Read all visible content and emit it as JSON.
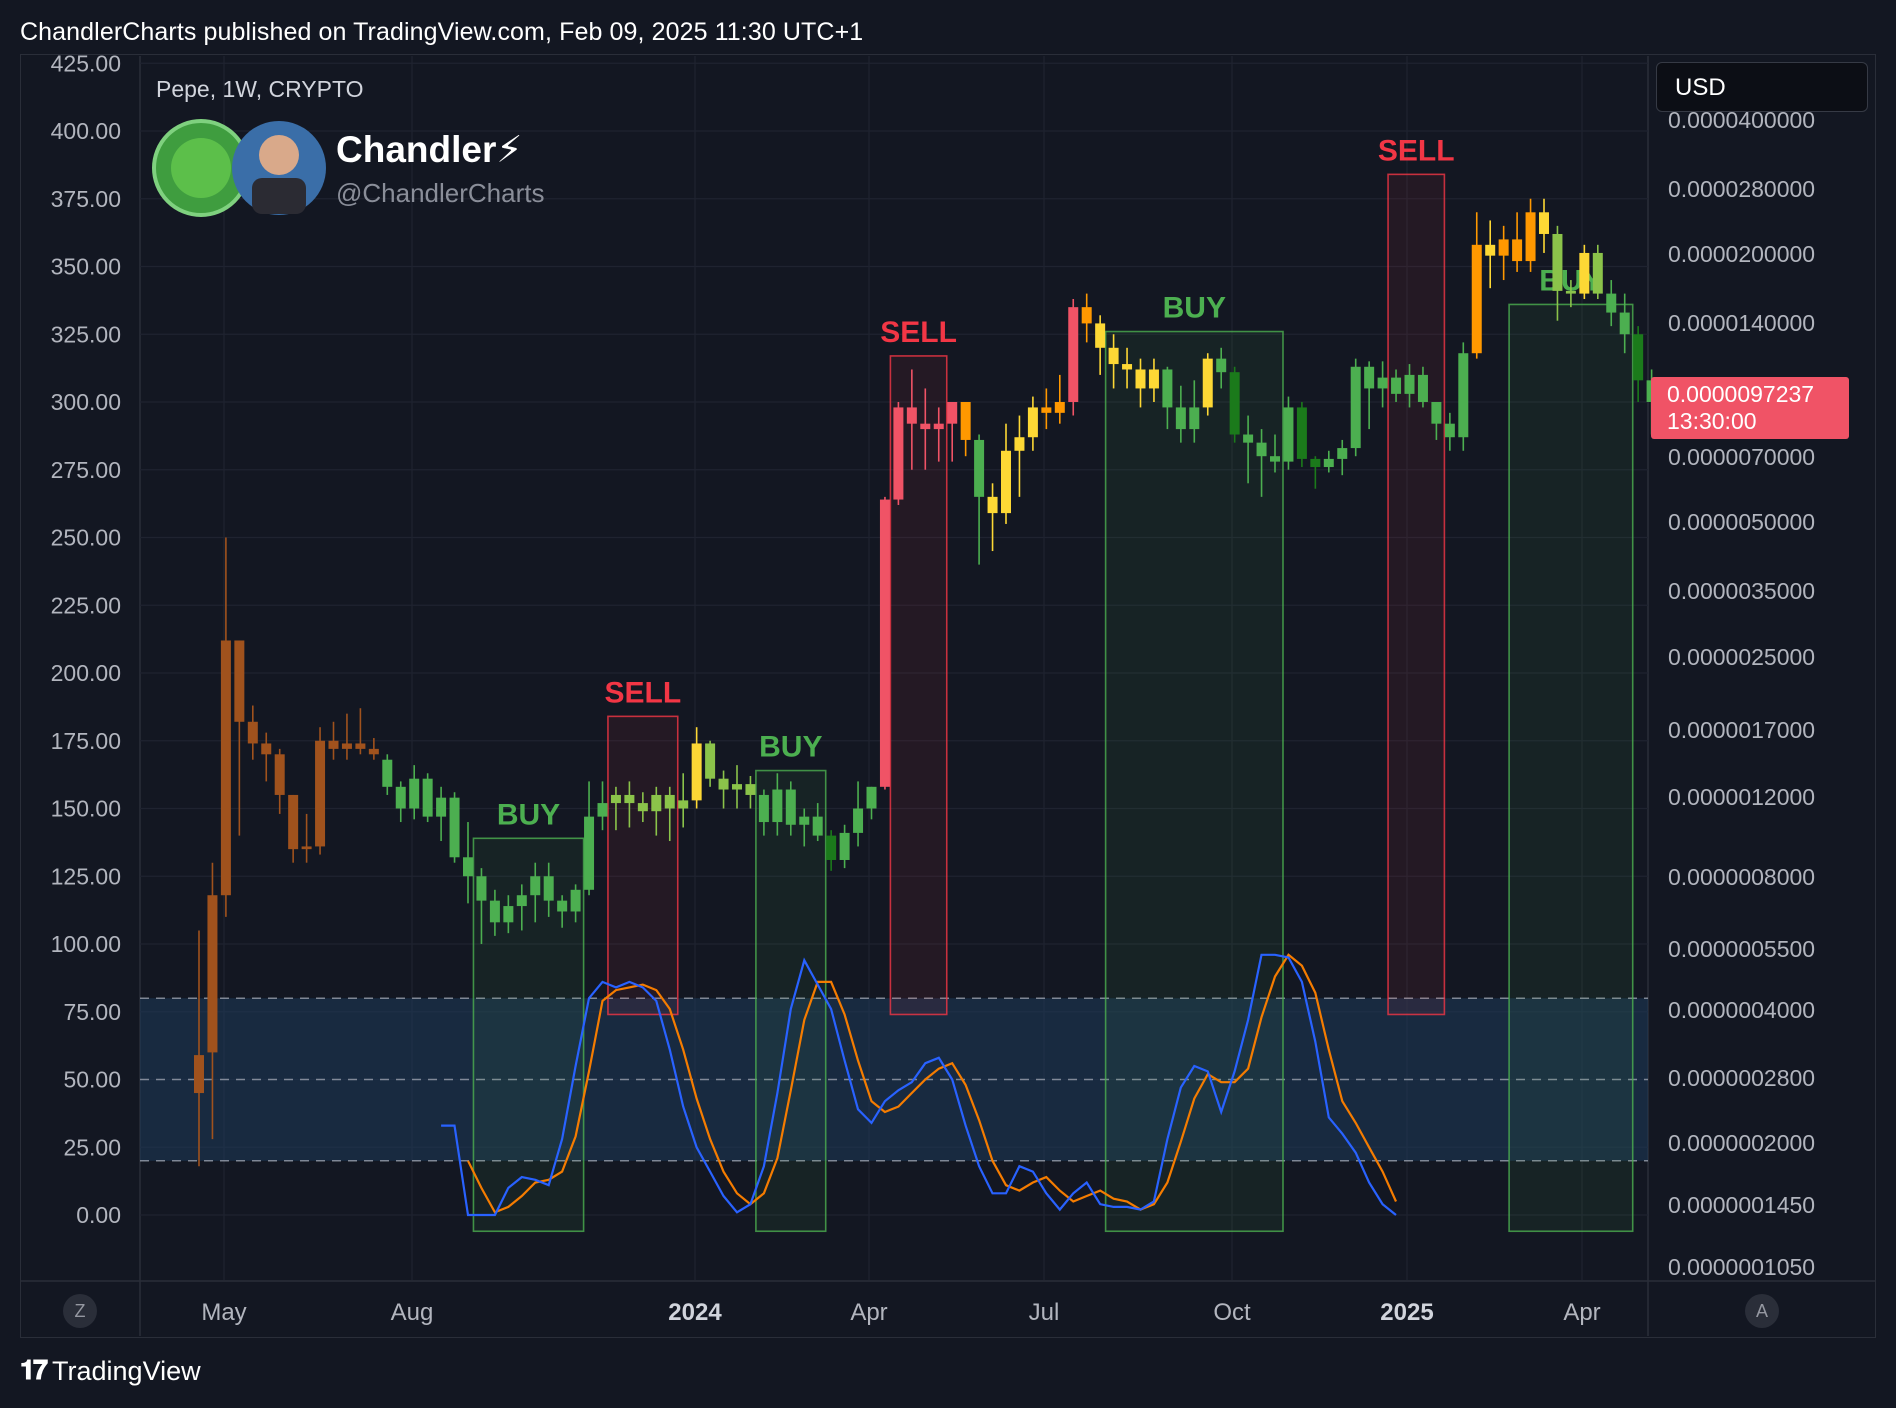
{
  "header": {
    "published_line": "ChandlerCharts published on TradingView.com, Feb 09, 2025 11:30 UTC+1"
  },
  "legend": {
    "symbol_line": "Pepe, 1W, CRYPTO",
    "author_name": "Chandler⚡",
    "handle": "@ChandlerCharts"
  },
  "currency_button": {
    "label": "USD"
  },
  "last_price": {
    "value": "0.0000097237",
    "countdown": "13:30:00",
    "color": "#f05366"
  },
  "footer": {
    "brand": "TradingView"
  },
  "corner_buttons": {
    "left": "Z",
    "right": "A"
  },
  "chart_data": {
    "type": "candlestick",
    "left_axis_ticks": [
      "425.00",
      "400.00",
      "375.00",
      "350.00",
      "325.00",
      "300.00",
      "275.00",
      "250.00",
      "225.00",
      "200.00",
      "175.00",
      "150.00",
      "125.00",
      "100.00",
      "75.00",
      "50.00",
      "25.00",
      "0.00"
    ],
    "right_axis_ticks": [
      "0.0000400000",
      "0.0000280000",
      "0.0000200000",
      "0.0000140000",
      "0.0000070000",
      "0.0000050000",
      "0.0000035000",
      "0.0000025000",
      "0.0000017000",
      "0.0000012000",
      "0.0000008000",
      "0.0000005500",
      "0.0000004000",
      "0.0000002800",
      "0.0000002000",
      "0.0000001450",
      "0.0000001050"
    ],
    "x_axis_ticks": [
      {
        "label": "May",
        "bold": false
      },
      {
        "label": "Aug",
        "bold": false
      },
      {
        "label": "2024",
        "bold": true
      },
      {
        "label": "Apr",
        "bold": false
      },
      {
        "label": "Jul",
        "bold": false
      },
      {
        "label": "Oct",
        "bold": false
      },
      {
        "label": "2025",
        "bold": true
      },
      {
        "label": "Apr",
        "bold": false
      }
    ],
    "candles_left_scale": [
      {
        "o": 45,
        "h": 105,
        "l": 18,
        "c": 59,
        "col": "#a0521d"
      },
      {
        "o": 60,
        "h": 130,
        "l": 28,
        "c": 118,
        "col": "#a0521d"
      },
      {
        "o": 118,
        "h": 250,
        "l": 110,
        "c": 212,
        "col": "#a0521d"
      },
      {
        "o": 212,
        "h": 212,
        "l": 140,
        "c": 182,
        "col": "#a0521d"
      },
      {
        "o": 182,
        "h": 188,
        "l": 168,
        "c": 174,
        "col": "#a0521d"
      },
      {
        "o": 174,
        "h": 178,
        "l": 160,
        "c": 170,
        "col": "#a0521d"
      },
      {
        "o": 170,
        "h": 172,
        "l": 148,
        "c": 155,
        "col": "#a0521d"
      },
      {
        "o": 155,
        "h": 155,
        "l": 130,
        "c": 135,
        "col": "#a0521d"
      },
      {
        "o": 135,
        "h": 148,
        "l": 130,
        "c": 136,
        "col": "#a0521d"
      },
      {
        "o": 136,
        "h": 180,
        "l": 133,
        "c": 175,
        "col": "#a0521d"
      },
      {
        "o": 175,
        "h": 182,
        "l": 168,
        "c": 172,
        "col": "#a0521d"
      },
      {
        "o": 172,
        "h": 185,
        "l": 168,
        "c": 174,
        "col": "#a0521d"
      },
      {
        "o": 174,
        "h": 187,
        "l": 170,
        "c": 172,
        "col": "#a0521d"
      },
      {
        "o": 172,
        "h": 176,
        "l": 168,
        "c": 170,
        "col": "#a0521d"
      },
      {
        "o": 168,
        "h": 170,
        "l": 155,
        "c": 158,
        "col": "#4caf50"
      },
      {
        "o": 158,
        "h": 160,
        "l": 145,
        "c": 150,
        "col": "#4caf50"
      },
      {
        "o": 150,
        "h": 166,
        "l": 146,
        "c": 161,
        "col": "#4caf50"
      },
      {
        "o": 161,
        "h": 163,
        "l": 145,
        "c": 147,
        "col": "#4caf50"
      },
      {
        "o": 147,
        "h": 158,
        "l": 138,
        "c": 154,
        "col": "#4caf50"
      },
      {
        "o": 154,
        "h": 156,
        "l": 130,
        "c": 132,
        "col": "#4caf50"
      },
      {
        "o": 132,
        "h": 145,
        "l": 115,
        "c": 125,
        "col": "#4caf50"
      },
      {
        "o": 125,
        "h": 128,
        "l": 100,
        "c": 116,
        "col": "#4caf50"
      },
      {
        "o": 116,
        "h": 120,
        "l": 103,
        "c": 108,
        "col": "#4caf50"
      },
      {
        "o": 108,
        "h": 118,
        "l": 104,
        "c": 114,
        "col": "#4caf50"
      },
      {
        "o": 114,
        "h": 122,
        "l": 105,
        "c": 118,
        "col": "#4caf50"
      },
      {
        "o": 118,
        "h": 130,
        "l": 108,
        "c": 125,
        "col": "#4caf50"
      },
      {
        "o": 125,
        "h": 130,
        "l": 110,
        "c": 116,
        "col": "#4caf50"
      },
      {
        "o": 116,
        "h": 118,
        "l": 106,
        "c": 112,
        "col": "#4caf50"
      },
      {
        "o": 112,
        "h": 122,
        "l": 108,
        "c": 120,
        "col": "#4caf50"
      },
      {
        "o": 120,
        "h": 160,
        "l": 118,
        "c": 147,
        "col": "#4caf50"
      },
      {
        "o": 147,
        "h": 160,
        "l": 142,
        "c": 152,
        "col": "#4caf50"
      },
      {
        "o": 152,
        "h": 158,
        "l": 142,
        "c": 155,
        "col": "#8bc34a"
      },
      {
        "o": 155,
        "h": 160,
        "l": 143,
        "c": 152,
        "col": "#8bc34a"
      },
      {
        "o": 152,
        "h": 156,
        "l": 145,
        "c": 149,
        "col": "#8bc34a"
      },
      {
        "o": 149,
        "h": 158,
        "l": 140,
        "c": 155,
        "col": "#8bc34a"
      },
      {
        "o": 155,
        "h": 158,
        "l": 138,
        "c": 150,
        "col": "#8bc34a"
      },
      {
        "o": 150,
        "h": 163,
        "l": 143,
        "c": 153,
        "col": "#8bc34a"
      },
      {
        "o": 153,
        "h": 180,
        "l": 150,
        "c": 174,
        "col": "#fdd835"
      },
      {
        "o": 174,
        "h": 175,
        "l": 158,
        "c": 161,
        "col": "#8bc34a"
      },
      {
        "o": 161,
        "h": 164,
        "l": 150,
        "c": 157,
        "col": "#8bc34a"
      },
      {
        "o": 157,
        "h": 166,
        "l": 150,
        "c": 159,
        "col": "#8bc34a"
      },
      {
        "o": 159,
        "h": 162,
        "l": 150,
        "c": 155,
        "col": "#8bc34a"
      },
      {
        "o": 155,
        "h": 157,
        "l": 140,
        "c": 145,
        "col": "#4caf50"
      },
      {
        "o": 145,
        "h": 163,
        "l": 140,
        "c": 157,
        "col": "#4caf50"
      },
      {
        "o": 157,
        "h": 160,
        "l": 140,
        "c": 144,
        "col": "#4caf50"
      },
      {
        "o": 144,
        "h": 150,
        "l": 136,
        "c": 147,
        "col": "#4caf50"
      },
      {
        "o": 147,
        "h": 152,
        "l": 138,
        "c": 140,
        "col": "#4caf50"
      },
      {
        "o": 140,
        "h": 142,
        "l": 127,
        "c": 131,
        "col": "#1b7a1b"
      },
      {
        "o": 131,
        "h": 144,
        "l": 128,
        "c": 141,
        "col": "#4caf50"
      },
      {
        "o": 141,
        "h": 160,
        "l": 136,
        "c": 150,
        "col": "#4caf50"
      },
      {
        "o": 150,
        "h": 158,
        "l": 146,
        "c": 158,
        "col": "#4caf50"
      },
      {
        "o": 158,
        "h": 265,
        "l": 157,
        "c": 264,
        "col": "#f05366"
      },
      {
        "o": 264,
        "h": 300,
        "l": 262,
        "c": 298,
        "col": "#f05366"
      },
      {
        "o": 298,
        "h": 312,
        "l": 275,
        "c": 292,
        "col": "#f05366"
      },
      {
        "o": 292,
        "h": 305,
        "l": 275,
        "c": 290,
        "col": "#f05366"
      },
      {
        "o": 290,
        "h": 298,
        "l": 278,
        "c": 292,
        "col": "#f05366"
      },
      {
        "o": 292,
        "h": 300,
        "l": 278,
        "c": 300,
        "col": "#f05366"
      },
      {
        "o": 300,
        "h": 296,
        "l": 280,
        "c": 286,
        "col": "#ff9800"
      },
      {
        "o": 286,
        "h": 288,
        "l": 240,
        "c": 265,
        "col": "#4caf50"
      },
      {
        "o": 265,
        "h": 270,
        "l": 245,
        "c": 259,
        "col": "#fdd835"
      },
      {
        "o": 259,
        "h": 292,
        "l": 255,
        "c": 282,
        "col": "#fdd835"
      },
      {
        "o": 282,
        "h": 295,
        "l": 265,
        "c": 287,
        "col": "#fdd835"
      },
      {
        "o": 287,
        "h": 302,
        "l": 282,
        "c": 298,
        "col": "#fdd835"
      },
      {
        "o": 298,
        "h": 305,
        "l": 290,
        "c": 296,
        "col": "#ff9800"
      },
      {
        "o": 296,
        "h": 310,
        "l": 292,
        "c": 300,
        "col": "#ff9800"
      },
      {
        "o": 300,
        "h": 338,
        "l": 295,
        "c": 335,
        "col": "#f05366"
      },
      {
        "o": 335,
        "h": 340,
        "l": 322,
        "c": 329,
        "col": "#ff9800"
      },
      {
        "o": 329,
        "h": 332,
        "l": 310,
        "c": 320,
        "col": "#fdd835"
      },
      {
        "o": 320,
        "h": 325,
        "l": 305,
        "c": 314,
        "col": "#fdd835"
      },
      {
        "o": 314,
        "h": 320,
        "l": 305,
        "c": 312,
        "col": "#fdd835"
      },
      {
        "o": 312,
        "h": 316,
        "l": 298,
        "c": 305,
        "col": "#fdd835"
      },
      {
        "o": 305,
        "h": 316,
        "l": 300,
        "c": 312,
        "col": "#fdd835"
      },
      {
        "o": 312,
        "h": 313,
        "l": 290,
        "c": 298,
        "col": "#4caf50"
      },
      {
        "o": 298,
        "h": 306,
        "l": 285,
        "c": 290,
        "col": "#4caf50"
      },
      {
        "o": 290,
        "h": 308,
        "l": 285,
        "c": 298,
        "col": "#4caf50"
      },
      {
        "o": 298,
        "h": 318,
        "l": 295,
        "c": 316,
        "col": "#fdd835"
      },
      {
        "o": 316,
        "h": 320,
        "l": 305,
        "c": 311,
        "col": "#4caf50"
      },
      {
        "o": 311,
        "h": 313,
        "l": 285,
        "c": 288,
        "col": "#1b7a1b"
      },
      {
        "o": 288,
        "h": 295,
        "l": 270,
        "c": 285,
        "col": "#4caf50"
      },
      {
        "o": 285,
        "h": 290,
        "l": 265,
        "c": 280,
        "col": "#4caf50"
      },
      {
        "o": 280,
        "h": 288,
        "l": 274,
        "c": 278,
        "col": "#4caf50"
      },
      {
        "o": 278,
        "h": 302,
        "l": 275,
        "c": 298,
        "col": "#4caf50"
      },
      {
        "o": 298,
        "h": 300,
        "l": 276,
        "c": 279,
        "col": "#1b7a1b"
      },
      {
        "o": 279,
        "h": 280,
        "l": 268,
        "c": 276,
        "col": "#1b7a1b"
      },
      {
        "o": 276,
        "h": 282,
        "l": 274,
        "c": 279,
        "col": "#4caf50"
      },
      {
        "o": 279,
        "h": 286,
        "l": 273,
        "c": 283,
        "col": "#4caf50"
      },
      {
        "o": 283,
        "h": 316,
        "l": 280,
        "c": 313,
        "col": "#4caf50"
      },
      {
        "o": 313,
        "h": 315,
        "l": 290,
        "c": 305,
        "col": "#4caf50"
      },
      {
        "o": 305,
        "h": 315,
        "l": 298,
        "c": 309,
        "col": "#4caf50"
      },
      {
        "o": 309,
        "h": 312,
        "l": 300,
        "c": 303,
        "col": "#4caf50"
      },
      {
        "o": 303,
        "h": 314,
        "l": 298,
        "c": 310,
        "col": "#4caf50"
      },
      {
        "o": 310,
        "h": 313,
        "l": 298,
        "c": 300,
        "col": "#4caf50"
      },
      {
        "o": 300,
        "h": 300,
        "l": 286,
        "c": 292,
        "col": "#4caf50"
      },
      {
        "o": 292,
        "h": 296,
        "l": 282,
        "c": 287,
        "col": "#4caf50"
      },
      {
        "o": 287,
        "h": 322,
        "l": 282,
        "c": 318,
        "col": "#4caf50"
      },
      {
        "o": 318,
        "h": 370,
        "l": 316,
        "c": 358,
        "col": "#ff9800"
      },
      {
        "o": 358,
        "h": 367,
        "l": 342,
        "c": 354,
        "col": "#fdd835"
      },
      {
        "o": 354,
        "h": 365,
        "l": 345,
        "c": 360,
        "col": "#ff9800"
      },
      {
        "o": 360,
        "h": 370,
        "l": 348,
        "c": 352,
        "col": "#ff9800"
      },
      {
        "o": 352,
        "h": 375,
        "l": 348,
        "c": 370,
        "col": "#ff9800"
      },
      {
        "o": 370,
        "h": 375,
        "l": 355,
        "c": 362,
        "col": "#fdd835"
      },
      {
        "o": 362,
        "h": 365,
        "l": 330,
        "c": 341,
        "col": "#8bc34a"
      },
      {
        "o": 341,
        "h": 345,
        "l": 335,
        "c": 340,
        "col": "#8bc34a"
      },
      {
        "o": 340,
        "h": 358,
        "l": 338,
        "c": 355,
        "col": "#fdd835"
      },
      {
        "o": 355,
        "h": 358,
        "l": 338,
        "c": 340,
        "col": "#8bc34a"
      },
      {
        "o": 340,
        "h": 345,
        "l": 328,
        "c": 333,
        "col": "#4caf50"
      },
      {
        "o": 333,
        "h": 340,
        "l": 318,
        "c": 325,
        "col": "#4caf50"
      },
      {
        "o": 325,
        "h": 328,
        "l": 300,
        "c": 308,
        "col": "#1b7a1b"
      },
      {
        "o": 308,
        "h": 312,
        "l": 288,
        "c": 300,
        "col": "#4caf50"
      }
    ],
    "signals": [
      {
        "label": "BUY",
        "first": 21,
        "last": 28,
        "top": 139,
        "bottom": -6,
        "color": "#4caf50"
      },
      {
        "label": "SELL",
        "first": 31,
        "last": 35,
        "top": 184,
        "bottom": 74,
        "color": "#f23645"
      },
      {
        "label": "BUY",
        "first": 42,
        "last": 46,
        "top": 164,
        "bottom": -6,
        "color": "#4caf50"
      },
      {
        "label": "SELL",
        "first": 52,
        "last": 55,
        "top": 317,
        "bottom": 74,
        "color": "#f23645"
      },
      {
        "label": "BUY",
        "first": 68,
        "last": 80,
        "top": 326,
        "bottom": -6,
        "color": "#4caf50"
      },
      {
        "label": "SELL",
        "first": 89,
        "last": 92,
        "top": 384,
        "bottom": 74,
        "color": "#f23645"
      },
      {
        "label": "BUY",
        "first": 98,
        "last": 106,
        "top": 336,
        "bottom": -6,
        "color": "#4caf50"
      }
    ],
    "stoch_rsi": {
      "start_index": 18,
      "k": [
        33,
        33,
        0,
        0,
        0,
        10,
        14,
        13,
        11,
        28,
        55,
        80,
        86,
        84,
        86,
        84,
        79,
        61,
        40,
        25,
        16,
        7,
        1,
        4,
        18,
        45,
        76,
        94,
        85,
        76,
        57,
        39,
        34,
        42,
        46,
        49,
        56,
        58,
        50,
        33,
        18,
        8,
        8,
        18,
        16,
        8,
        2,
        8,
        12,
        4,
        3,
        3,
        2,
        5,
        28,
        47,
        55,
        53,
        38,
        53,
        72,
        96,
        96,
        95,
        86,
        64,
        36,
        30,
        23,
        12,
        4,
        0
      ],
      "d": [
        null,
        null,
        20,
        10,
        1,
        3,
        7,
        12,
        13,
        16,
        29,
        53,
        79,
        83,
        84,
        85,
        83,
        76,
        61,
        43,
        28,
        16,
        8,
        4,
        8,
        21,
        46,
        72,
        86,
        86,
        74,
        57,
        42,
        38,
        40,
        45,
        50,
        54,
        56,
        48,
        35,
        20,
        11,
        9,
        12,
        14,
        9,
        5,
        7,
        9,
        6,
        5,
        2,
        4,
        12,
        27,
        43,
        52,
        49,
        49,
        54,
        73,
        88,
        96,
        92,
        82,
        61,
        42,
        34,
        25,
        16,
        5
      ]
    },
    "overbought_level": 80,
    "oversold_level": 20,
    "midline": 50
  }
}
